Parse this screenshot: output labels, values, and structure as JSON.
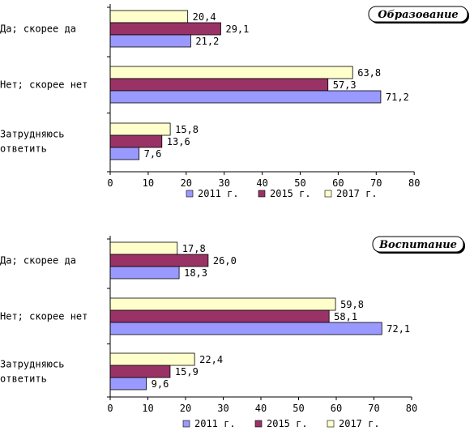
{
  "colors": {
    "2011": "#9999ff",
    "2015": "#993366",
    "2017": "#ffffcc"
  },
  "chart_data": [
    {
      "type": "bar",
      "orientation": "horizontal",
      "title": "Образование",
      "categories": [
        [
          "Да; скорее да"
        ],
        [
          "Нет; скорее нет"
        ],
        [
          "Затрудняюсь",
          "ответить"
        ]
      ],
      "series": [
        {
          "name": "2017 г.",
          "values": [
            20.4,
            63.8,
            15.8
          ]
        },
        {
          "name": "2015 г.",
          "values": [
            29.1,
            57.3,
            13.6
          ]
        },
        {
          "name": "2011 г.",
          "values": [
            21.2,
            71.2,
            7.6
          ]
        }
      ],
      "value_labels": [
        [
          "20,4",
          "63,8",
          "15,8"
        ],
        [
          "29,1",
          "57,3",
          "13,6"
        ],
        [
          "21,2",
          "71,2",
          "7,6"
        ]
      ],
      "xlim": [
        0,
        80
      ],
      "xticks": [
        "0",
        "10",
        "20",
        "30",
        "40",
        "50",
        "60",
        "70",
        "80"
      ],
      "legend": [
        "2011 г.",
        "2015 г.",
        "2017 г."
      ],
      "legend_position": "bottom",
      "grid": false
    },
    {
      "type": "bar",
      "orientation": "horizontal",
      "title": "Воспитание",
      "categories": [
        [
          "Да; скорее да"
        ],
        [
          "Нет; скорее нет"
        ],
        [
          "Затрудняюсь",
          "ответить"
        ]
      ],
      "series": [
        {
          "name": "2017 г.",
          "values": [
            17.8,
            59.8,
            22.4
          ]
        },
        {
          "name": "2015 г.",
          "values": [
            26.0,
            58.1,
            15.9
          ]
        },
        {
          "name": "2011 г.",
          "values": [
            18.3,
            72.1,
            9.6
          ]
        }
      ],
      "value_labels": [
        [
          "17,8",
          "59,8",
          "22,4"
        ],
        [
          "26,0",
          "58,1",
          "15,9"
        ],
        [
          "18,3",
          "72,1",
          "9,6"
        ]
      ],
      "xlim": [
        0,
        80
      ],
      "xticks": [
        "0",
        "10",
        "20",
        "30",
        "40",
        "50",
        "60",
        "70",
        "80"
      ],
      "legend": [
        "2011 г.",
        "2015 г.",
        "2017 г."
      ],
      "legend_position": "bottom",
      "grid": false
    }
  ]
}
